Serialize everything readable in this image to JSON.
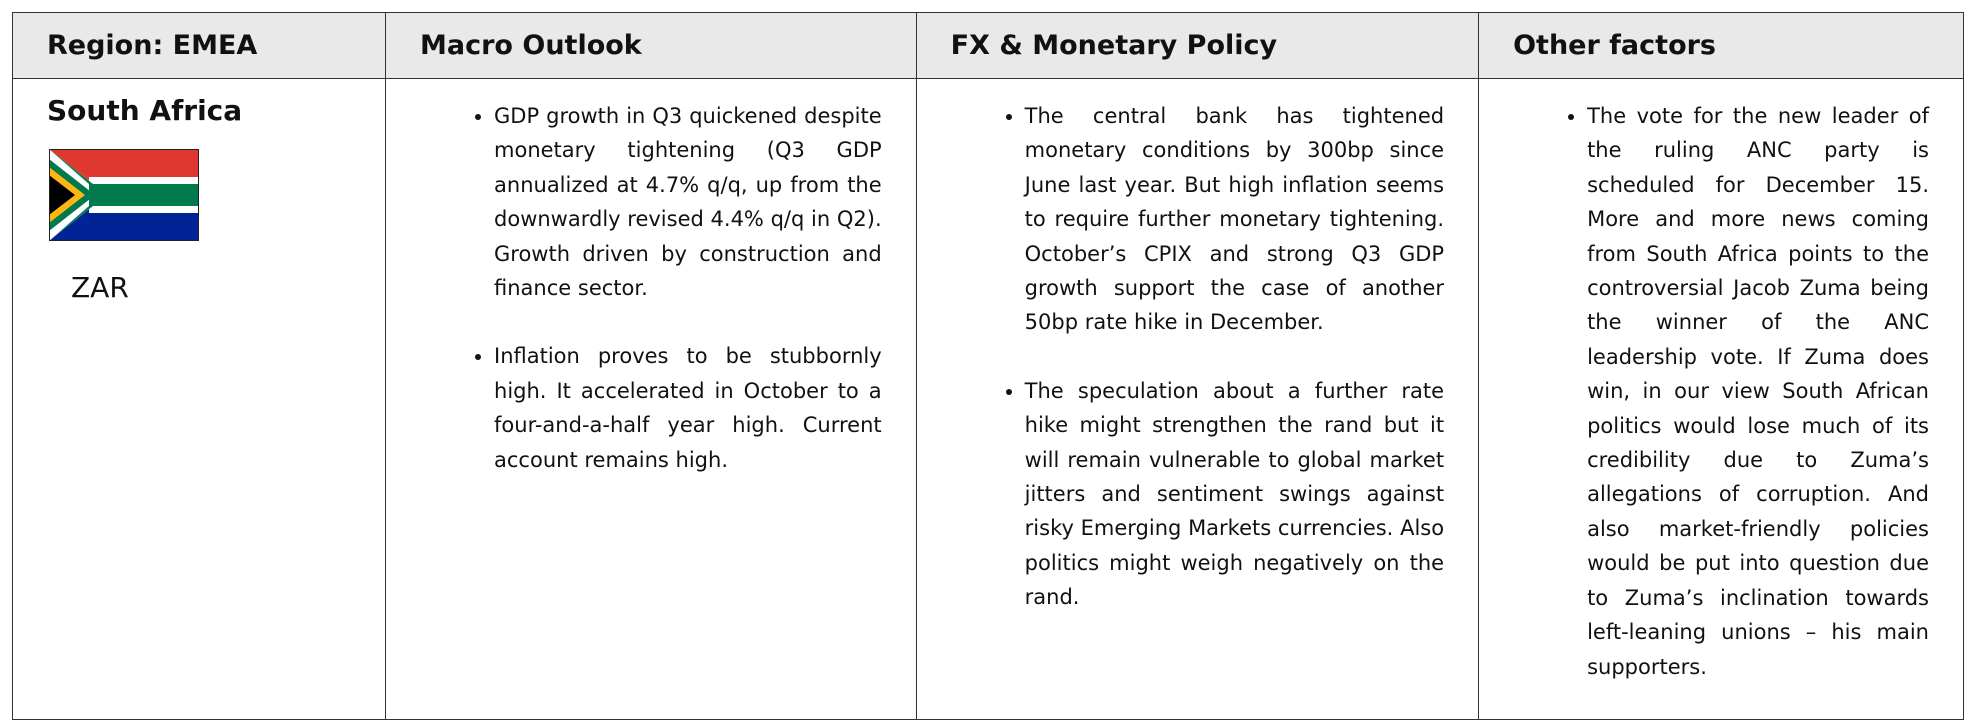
{
  "table": {
    "headers": [
      "Region: EMEA",
      "Macro Outlook",
      "FX & Monetary Policy",
      "Other factors"
    ],
    "rows": [
      {
        "country": "South Africa",
        "currency": "ZAR",
        "macro": [
          "GDP growth in Q3 quickened despite monetary tightening (Q3 GDP annualized at 4.7% q/q, up from the downwardly revised 4.4% q/q in Q2). Growth driven by construction and finance sector.",
          "Inflation proves to be stubbornly high. It accelerated in October to a four-and-a-half year high. Current account remains high."
        ],
        "fx": [
          "The central bank has tightened monetary conditions by 300bp since June last year. But high inflation seems to require further monetary tightening. October’s CPIX and strong Q3 GDP growth support the case of another 50bp rate hike in December.",
          "The speculation about a further rate hike might strengthen the rand but it will remain vulnerable to global market jitters and sentiment swings against risky Emerging Markets currencies. Also politics might weigh negatively on the rand."
        ],
        "other": [
          "The vote for the new leader of the ruling ANC party is scheduled for December 15. More and more news coming from South Africa points to the controversial Jacob Zuma being the winner of the ANC leadership vote. If Zuma does win, in our view South African politics would lose much of its credibility due to Zuma’s allegations of corruption. And also market-friendly policies would be put into question due to Zuma’s inclination towards left-leaning unions – his main supporters."
        ]
      }
    ]
  }
}
